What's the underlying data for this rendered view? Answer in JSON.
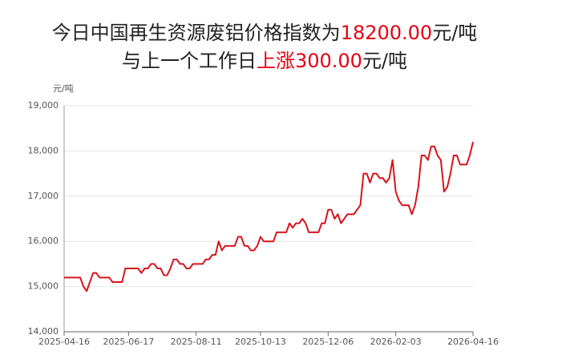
{
  "chart_data": {
    "type": "line",
    "title": [
      [
        {
          "text": "今日中国再生资源废铝价格指数为",
          "color": "#222222"
        },
        {
          "text": "18200.00",
          "color": "#e60012"
        },
        {
          "text": "元/吨",
          "color": "#222222"
        }
      ],
      [
        {
          "text": "与上一个工作日",
          "color": "#222222"
        },
        {
          "text": "上涨300.00",
          "color": "#e60012"
        },
        {
          "text": "元/吨",
          "color": "#222222"
        }
      ]
    ],
    "y_label": "元/吨",
    "color": "#d7141a",
    "grid": true,
    "ylim": [
      14000,
      19000
    ],
    "yticks": [
      {
        "value": 14000,
        "label": "14,000"
      },
      {
        "value": 15000,
        "label": "15,000"
      },
      {
        "value": 16000,
        "label": "16,000"
      },
      {
        "value": 17000,
        "label": "17,000"
      },
      {
        "value": 18000,
        "label": "18,000"
      },
      {
        "value": 19000,
        "label": "19,000"
      }
    ],
    "categories": [
      "2025-04-16",
      null,
      null,
      null,
      null,
      null,
      null,
      null,
      null,
      null,
      null,
      null,
      null,
      null,
      null,
      null,
      null,
      null,
      null,
      null,
      "2025-06-17",
      null,
      null,
      null,
      null,
      null,
      null,
      null,
      null,
      null,
      null,
      null,
      null,
      null,
      null,
      null,
      null,
      null,
      null,
      null,
      null,
      "2025-08-11",
      null,
      null,
      null,
      null,
      null,
      null,
      null,
      null,
      null,
      null,
      null,
      null,
      null,
      null,
      null,
      null,
      null,
      null,
      null,
      "2025-10-13",
      null,
      null,
      null,
      null,
      null,
      null,
      null,
      null,
      null,
      null,
      null,
      null,
      null,
      null,
      null,
      null,
      null,
      null,
      null,
      null,
      "2025-12-06",
      null,
      null,
      null,
      null,
      null,
      null,
      null,
      null,
      null,
      null,
      null,
      null,
      null,
      null,
      null,
      null,
      null,
      null,
      null,
      null,
      "2026-02-03",
      null,
      null,
      null,
      null,
      null,
      null,
      null,
      null,
      null,
      null,
      null,
      null,
      null,
      null,
      null,
      null,
      null,
      null,
      null,
      null,
      null,
      null,
      null,
      "2026-04-16"
    ],
    "values": [
      15200,
      15200,
      15200,
      15200,
      15200,
      15200,
      15000,
      14900,
      15100,
      15300,
      15300,
      15200,
      15200,
      15200,
      15200,
      15100,
      15100,
      15100,
      15100,
      15400,
      15400,
      15400,
      15400,
      15400,
      15300,
      15400,
      15400,
      15500,
      15500,
      15400,
      15400,
      15250,
      15250,
      15400,
      15600,
      15600,
      15500,
      15500,
      15400,
      15400,
      15500,
      15500,
      15500,
      15500,
      15600,
      15600,
      15700,
      15700,
      16000,
      15800,
      15900,
      15900,
      15900,
      15900,
      16100,
      16100,
      15900,
      15900,
      15800,
      15800,
      15900,
      16100,
      16000,
      16000,
      16000,
      16000,
      16200,
      16200,
      16200,
      16200,
      16400,
      16300,
      16400,
      16400,
      16500,
      16400,
      16200,
      16200,
      16200,
      16200,
      16400,
      16400,
      16700,
      16700,
      16500,
      16600,
      16400,
      16500,
      16600,
      16600,
      16600,
      16700,
      16800,
      17500,
      17500,
      17300,
      17500,
      17500,
      17400,
      17400,
      17300,
      17400,
      17800,
      17100,
      16900,
      16800,
      16800,
      16800,
      16600,
      16800,
      17200,
      17900,
      17900,
      17800,
      18100,
      18100,
      17900,
      17800,
      17100,
      17200,
      17500,
      17900,
      17900,
      17700,
      17700,
      17700,
      17900,
      18200
    ]
  }
}
